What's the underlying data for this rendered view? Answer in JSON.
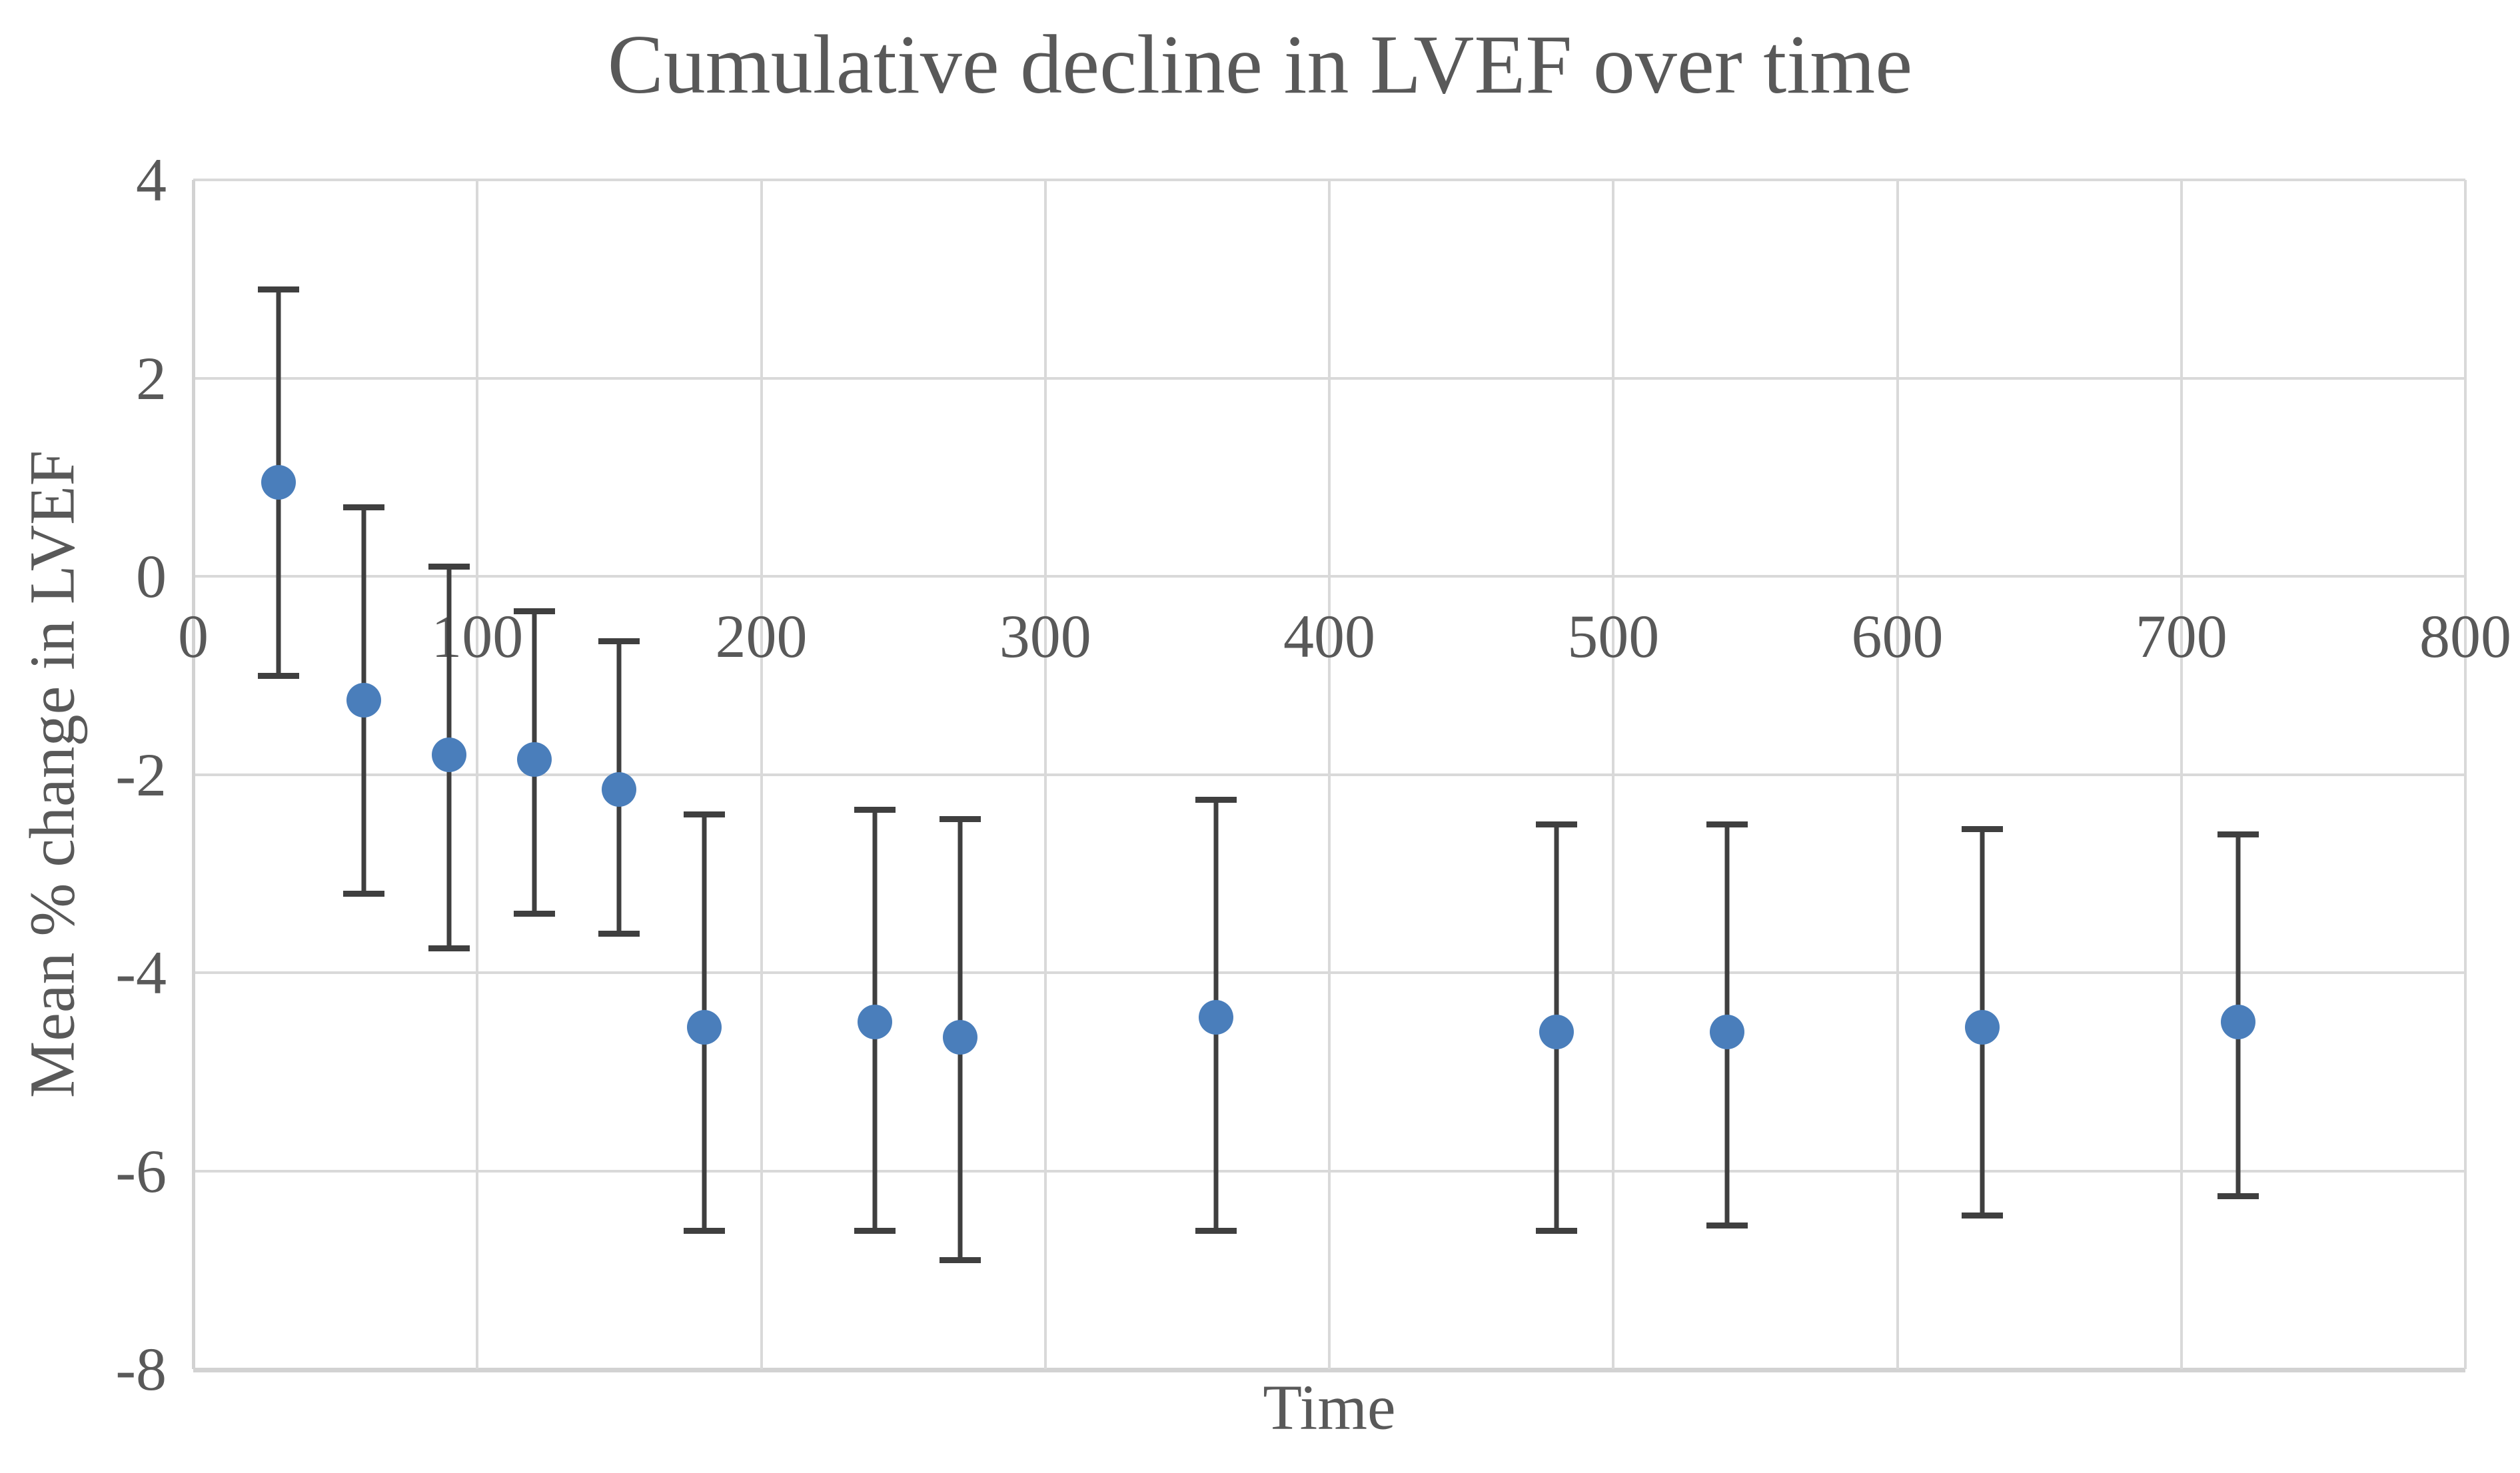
{
  "title": "Cumulative decline in LVEF over time",
  "x_axis": {
    "title": "Time",
    "min": 0,
    "max": 800,
    "tick_step": 100,
    "tick_labels": [
      "0",
      "100",
      "200",
      "300",
      "400",
      "500",
      "600",
      "700",
      "800"
    ]
  },
  "y_axis": {
    "title": "Mean % change in LVEF",
    "min": -8,
    "max": 4,
    "tick_step": 2,
    "tick_labels": [
      "4",
      "2",
      "0",
      "-2",
      "-4",
      "-6",
      "-8"
    ]
  },
  "colors": {
    "marker": "#4A7EBB",
    "error_bar": "#3F3F3F",
    "gridline": "#D9D9D9",
    "text": "#595959"
  },
  "chart_data": {
    "type": "scatter",
    "title": "Cumulative decline in LVEF over time",
    "xlabel": "Time",
    "ylabel": "Mean % change in LVEF",
    "xlim": [
      0,
      800
    ],
    "ylim": [
      -8,
      4
    ],
    "x_ticks": [
      0,
      100,
      200,
      300,
      400,
      500,
      600,
      700,
      800
    ],
    "y_ticks": [
      4,
      2,
      0,
      -2,
      -4,
      -6,
      -8
    ],
    "grid": true,
    "legend": "none",
    "series": [
      {
        "name": "Mean % change in LVEF",
        "marker": "circle",
        "error_bars": true,
        "points": [
          {
            "x": 30,
            "y": 0.95,
            "ci_lower": -1.0,
            "ci_upper": 2.9
          },
          {
            "x": 60,
            "y": -1.25,
            "ci_lower": -3.2,
            "ci_upper": 0.7
          },
          {
            "x": 90,
            "y": -1.8,
            "ci_lower": -3.75,
            "ci_upper": 0.1
          },
          {
            "x": 120,
            "y": -1.85,
            "ci_lower": -3.4,
            "ci_upper": -0.35
          },
          {
            "x": 150,
            "y": -2.15,
            "ci_lower": -3.6,
            "ci_upper": -0.65
          },
          {
            "x": 180,
            "y": -4.55,
            "ci_lower": -6.6,
            "ci_upper": -2.4
          },
          {
            "x": 240,
            "y": -4.5,
            "ci_lower": -6.6,
            "ci_upper": -2.35
          },
          {
            "x": 270,
            "y": -4.65,
            "ci_lower": -6.9,
            "ci_upper": -2.45
          },
          {
            "x": 360,
            "y": -4.45,
            "ci_lower": -6.6,
            "ci_upper": -2.25
          },
          {
            "x": 480,
            "y": -4.6,
            "ci_lower": -6.6,
            "ci_upper": -2.5
          },
          {
            "x": 540,
            "y": -4.6,
            "ci_lower": -6.55,
            "ci_upper": -2.5
          },
          {
            "x": 630,
            "y": -4.55,
            "ci_lower": -6.45,
            "ci_upper": -2.55
          },
          {
            "x": 720,
            "y": -4.5,
            "ci_lower": -6.25,
            "ci_upper": -2.6
          }
        ]
      }
    ]
  }
}
